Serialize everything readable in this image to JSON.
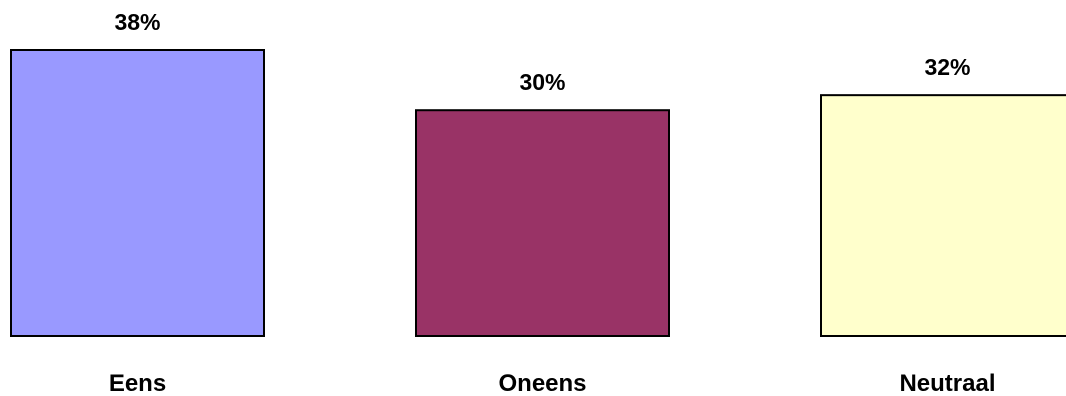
{
  "chart_data": {
    "type": "bar",
    "categories": [
      "Eens",
      "Oneens",
      "Neutraal"
    ],
    "values": [
      38,
      30,
      32
    ],
    "value_labels": [
      "38%",
      "30%",
      "32%"
    ],
    "colors": [
      "#9999ff",
      "#993366",
      "#ffffcc"
    ],
    "title": "",
    "xlabel": "",
    "ylabel": "",
    "ylim": [
      0,
      38
    ],
    "grid": false,
    "legend": "none"
  }
}
